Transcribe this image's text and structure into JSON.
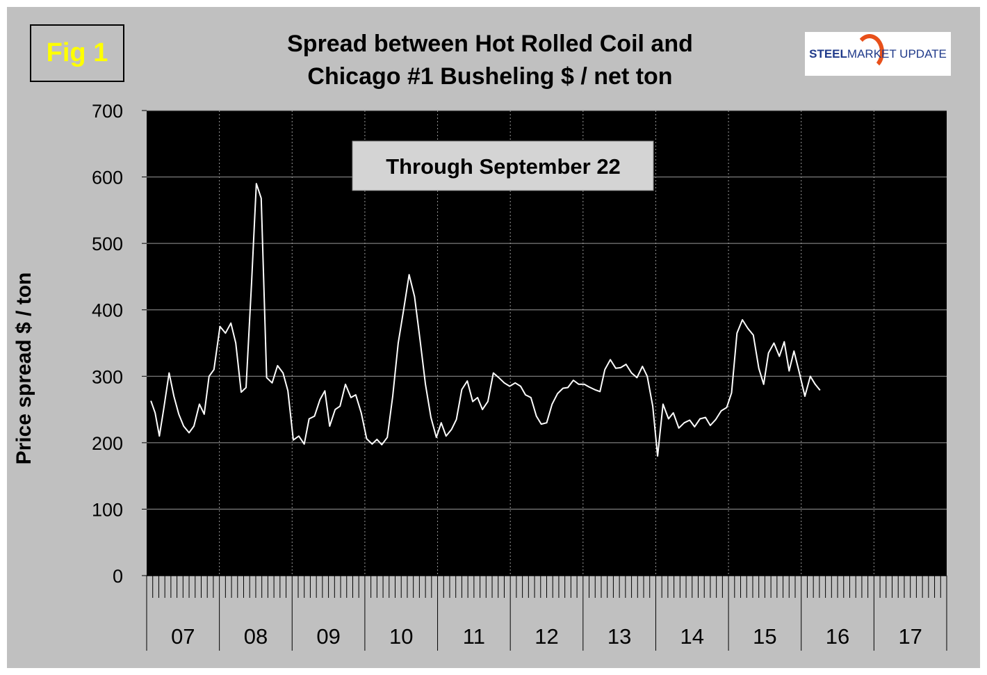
{
  "fig_label": "Fig 1",
  "title_line1": "Spread between Hot Rolled Coil and",
  "title_line2": "Chicago #1 Busheling  $ / net ton",
  "logo": {
    "steel": "STEEL",
    "rest": " MARKET UPDATE",
    "accent": "#e8501a",
    "text_color": "#1f3a8a"
  },
  "chart_data": {
    "type": "line",
    "annotation": "Through September 22",
    "ylabel": "Price spread $ / ton",
    "xlabel": "",
    "ylim": [
      0,
      700
    ],
    "yticks": [
      0,
      100,
      200,
      300,
      400,
      500,
      600,
      700
    ],
    "year_labels": [
      "07",
      "08",
      "09",
      "10",
      "11",
      "12",
      "13",
      "14",
      "15",
      "16",
      "17"
    ],
    "x_range_months": [
      0,
      132
    ],
    "grid": true,
    "background": "#000000",
    "line_color": "#ffffff",
    "x_unit": "months since Jan 2007",
    "series": [
      {
        "points": [
          [
            0.7,
            263
          ],
          [
            1.4,
            245
          ],
          [
            2.1,
            210
          ],
          [
            2.8,
            250
          ],
          [
            3.7,
            305
          ],
          [
            4.5,
            270
          ],
          [
            5.3,
            243
          ],
          [
            6.1,
            225
          ],
          [
            7.0,
            215
          ],
          [
            7.8,
            225
          ],
          [
            8.7,
            258
          ],
          [
            9.5,
            243
          ],
          [
            10.3,
            300
          ],
          [
            11.1,
            310
          ],
          [
            12.1,
            375
          ],
          [
            13.0,
            365
          ],
          [
            13.9,
            380
          ],
          [
            14.7,
            350
          ],
          [
            15.6,
            276
          ],
          [
            16.4,
            283
          ],
          [
            17.3,
            440
          ],
          [
            18.1,
            590
          ],
          [
            18.9,
            568
          ],
          [
            19.8,
            298
          ],
          [
            20.7,
            290
          ],
          [
            21.6,
            316
          ],
          [
            22.5,
            305
          ],
          [
            23.3,
            278
          ],
          [
            24.2,
            204
          ],
          [
            25.1,
            210
          ],
          [
            26.0,
            198
          ],
          [
            26.8,
            236
          ],
          [
            27.7,
            240
          ],
          [
            28.6,
            265
          ],
          [
            29.4,
            278
          ],
          [
            30.2,
            225
          ],
          [
            31.1,
            250
          ],
          [
            31.9,
            255
          ],
          [
            32.8,
            288
          ],
          [
            33.7,
            268
          ],
          [
            34.5,
            272
          ],
          [
            35.4,
            245
          ],
          [
            36.3,
            206
          ],
          [
            37.2,
            198
          ],
          [
            38.0,
            205
          ],
          [
            38.8,
            197
          ],
          [
            39.7,
            208
          ],
          [
            40.6,
            270
          ],
          [
            41.5,
            350
          ],
          [
            42.4,
            400
          ],
          [
            43.3,
            453
          ],
          [
            44.2,
            420
          ],
          [
            45.1,
            355
          ],
          [
            46.0,
            288
          ],
          [
            46.9,
            238
          ],
          [
            47.8,
            208
          ],
          [
            48.6,
            230
          ],
          [
            49.4,
            210
          ],
          [
            50.3,
            220
          ],
          [
            51.1,
            235
          ],
          [
            52.0,
            280
          ],
          [
            52.9,
            293
          ],
          [
            53.8,
            262
          ],
          [
            54.6,
            268
          ],
          [
            55.4,
            250
          ],
          [
            56.3,
            262
          ],
          [
            57.2,
            305
          ],
          [
            58.1,
            298
          ],
          [
            59.0,
            290
          ],
          [
            59.9,
            285
          ],
          [
            60.8,
            290
          ],
          [
            61.7,
            285
          ],
          [
            62.5,
            272
          ],
          [
            63.4,
            268
          ],
          [
            64.3,
            240
          ],
          [
            65.1,
            228
          ],
          [
            66.0,
            230
          ],
          [
            66.9,
            258
          ],
          [
            67.8,
            274
          ],
          [
            68.7,
            282
          ],
          [
            69.5,
            283
          ],
          [
            70.4,
            294
          ],
          [
            71.3,
            288
          ],
          [
            72.2,
            288
          ],
          [
            73.0,
            284
          ],
          [
            73.9,
            280
          ],
          [
            74.8,
            277
          ],
          [
            75.6,
            310
          ],
          [
            76.5,
            325
          ],
          [
            77.4,
            312
          ],
          [
            78.2,
            313
          ],
          [
            79.1,
            318
          ],
          [
            80.0,
            305
          ],
          [
            80.9,
            298
          ],
          [
            81.8,
            315
          ],
          [
            82.6,
            300
          ],
          [
            83.5,
            255
          ],
          [
            84.3,
            180
          ],
          [
            85.2,
            258
          ],
          [
            86.1,
            236
          ],
          [
            86.9,
            245
          ],
          [
            87.8,
            222
          ],
          [
            88.7,
            230
          ],
          [
            89.6,
            234
          ],
          [
            90.4,
            224
          ],
          [
            91.3,
            236
          ],
          [
            92.2,
            238
          ],
          [
            93.0,
            226
          ],
          [
            93.9,
            235
          ],
          [
            94.8,
            248
          ],
          [
            95.7,
            253
          ],
          [
            96.5,
            275
          ],
          [
            97.4,
            365
          ],
          [
            98.3,
            385
          ],
          [
            99.2,
            372
          ],
          [
            100.1,
            362
          ],
          [
            101.0,
            312
          ],
          [
            101.8,
            288
          ],
          [
            102.6,
            335
          ],
          [
            103.5,
            350
          ],
          [
            104.4,
            330
          ],
          [
            105.2,
            352
          ],
          [
            106.0,
            308
          ],
          [
            106.8,
            338
          ],
          [
            107.7,
            305
          ],
          [
            108.6,
            270
          ],
          [
            109.5,
            300
          ],
          [
            110.3,
            288
          ],
          [
            111.1,
            279
          ]
        ]
      }
    ]
  }
}
